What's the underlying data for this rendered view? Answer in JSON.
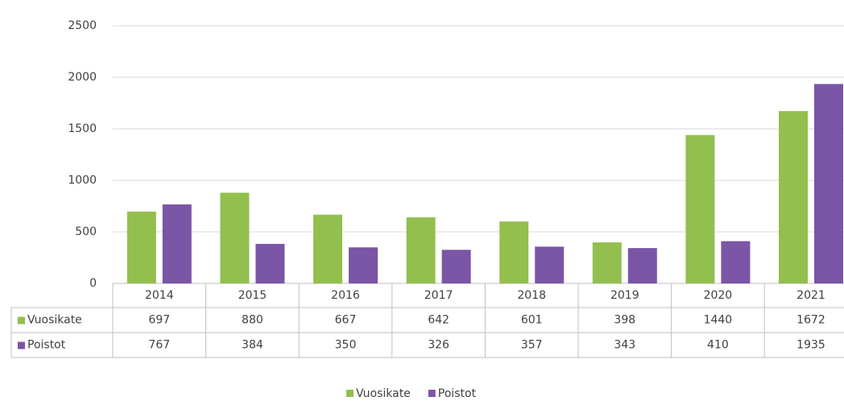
{
  "chart_data": {
    "type": "bar",
    "categories": [
      "2014",
      "2015",
      "2016",
      "2017",
      "2018",
      "2019",
      "2020",
      "2021"
    ],
    "series": [
      {
        "name": "Vuosikate",
        "color": "#92bf4e",
        "values": [
          697,
          880,
          667,
          642,
          601,
          398,
          1440,
          1672
        ]
      },
      {
        "name": "Poistot",
        "color": "#7b55a6",
        "values": [
          767,
          384,
          350,
          326,
          357,
          343,
          410,
          1935
        ]
      }
    ],
    "ylim": [
      0,
      2500
    ],
    "yticks": [
      0,
      500,
      1000,
      1500,
      2000,
      2500
    ],
    "grid": true
  }
}
